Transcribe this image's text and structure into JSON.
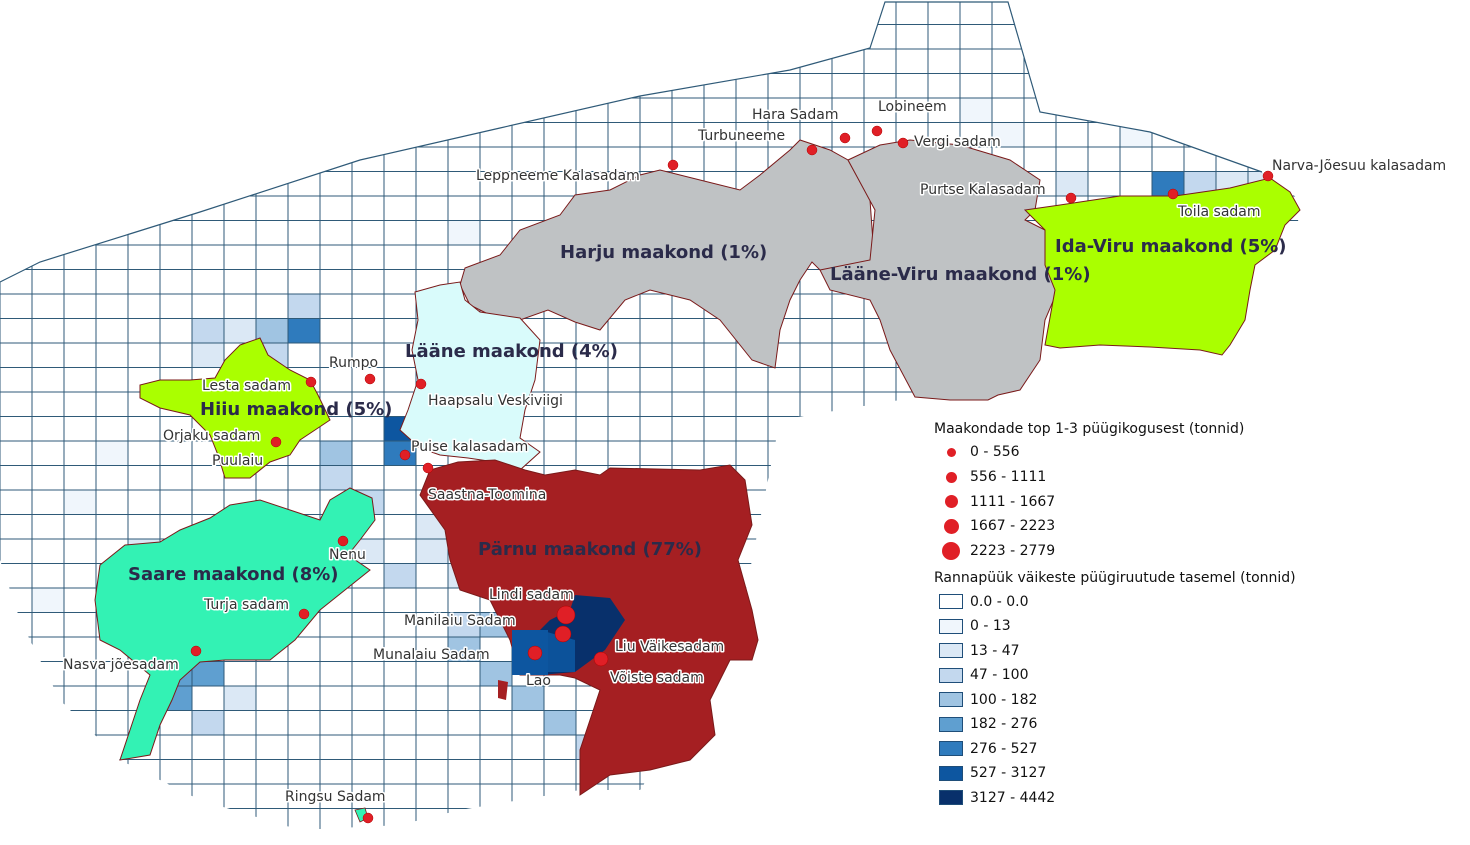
{
  "counties": [
    {
      "id": "harju",
      "label": "Harju maakond (1%)",
      "color": "#bfc2c4"
    },
    {
      "id": "laane-viru",
      "label": "Lääne-Viru maakond (1%)",
      "color": "#bfc2c4"
    },
    {
      "id": "ida-viru",
      "label": "Ida-Viru maakond (5%)",
      "color": "#aaff00"
    },
    {
      "id": "laane",
      "label": "Lääne maakond (4%)",
      "color": "#d9fbfb"
    },
    {
      "id": "hiiu",
      "label": "Hiiu maakond (5%)",
      "color": "#aaff00"
    },
    {
      "id": "saare",
      "label": "Saare maakond (8%)",
      "color": "#33f2b4"
    },
    {
      "id": "parnu",
      "label": "Pärnu maakond (77%)",
      "color": "#a51f22"
    }
  ],
  "ports": [
    {
      "name": "Leppneeme Kalasadam"
    },
    {
      "name": "Turbuneeme"
    },
    {
      "name": "Hara Sadam"
    },
    {
      "name": "Lobineem"
    },
    {
      "name": "Vergi sadam"
    },
    {
      "name": "Purtse Kalasadam"
    },
    {
      "name": "Toila sadam"
    },
    {
      "name": "Narva-Jõesuu kalasadam"
    },
    {
      "name": "Rumpo"
    },
    {
      "name": "Lesta sadam"
    },
    {
      "name": "Haapsalu Veskiviigi"
    },
    {
      "name": "Orjaku sadam"
    },
    {
      "name": "Puulaiu"
    },
    {
      "name": "Puise kalasadam"
    },
    {
      "name": "Saastna-Toomina"
    },
    {
      "name": "Nenu"
    },
    {
      "name": "Turja sadam"
    },
    {
      "name": "Nasva jõesadam"
    },
    {
      "name": "Lindi sadam"
    },
    {
      "name": "Manilaiu Sadam"
    },
    {
      "name": "Munalaiu Sadam"
    },
    {
      "name": "Liu Väikesadam"
    },
    {
      "name": "Võiste sadam"
    },
    {
      "name": "Lao"
    },
    {
      "name": "Ringsu Sadam"
    }
  ],
  "legend": {
    "catch_title": "Maakondade top 1-3 püügikogusest (tonnid)",
    "catch_classes": [
      {
        "label": "0 - 556"
      },
      {
        "label": "556 - 1111"
      },
      {
        "label": "1111 - 1667"
      },
      {
        "label": "1667 - 2223"
      },
      {
        "label": "2223 - 2779"
      }
    ],
    "grid_title": "Rannapüük väikeste püügiruutude tasemel (tonnid)",
    "grid_classes": [
      {
        "label": "0.0 - 0.0",
        "color": "#ffffff"
      },
      {
        "label": "0 - 13",
        "color": "#f0f6fc"
      },
      {
        "label": "13 - 47",
        "color": "#dbe8f5"
      },
      {
        "label": "47 - 100",
        "color": "#c3d8ee"
      },
      {
        "label": "100 - 182",
        "color": "#a0c4e2"
      },
      {
        "label": "182 - 276",
        "color": "#5f9fd0"
      },
      {
        "label": "276 - 527",
        "color": "#2f7bbd"
      },
      {
        "label": "527 - 3127",
        "color": "#0d56a0"
      },
      {
        "label": "3127 - 4442",
        "color": "#08306b"
      }
    ]
  }
}
